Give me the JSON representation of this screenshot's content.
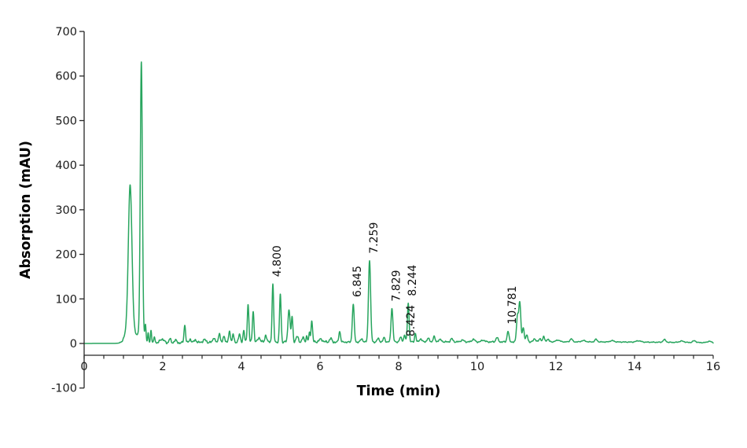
{
  "chart_data": {
    "type": "line",
    "title": "",
    "xlabel": "Time (min)",
    "ylabel": "Absorption (mAU)",
    "xlim": [
      0,
      16
    ],
    "ylim": [
      -100,
      700
    ],
    "x_major_ticks": [
      0,
      2,
      4,
      6,
      8,
      10,
      12,
      14,
      16
    ],
    "x_minor_tick_step": 0.5,
    "y_ticks": [
      700,
      600,
      500,
      400,
      300,
      200,
      100,
      0,
      -100
    ],
    "grid": "off",
    "legend": "none",
    "line_color": "#28a55e",
    "axis_color": "#262626",
    "text_color": "#1a1a1a",
    "labeled_peaks": [
      {
        "rt": 4.8,
        "label": "4.800"
      },
      {
        "rt": 6.845,
        "label": "6.845"
      },
      {
        "rt": 7.259,
        "label": "7.259"
      },
      {
        "rt": 7.829,
        "label": "7.829"
      },
      {
        "rt": 8.244,
        "label": "8.244"
      },
      {
        "rt": 8.424,
        "label": "8.424",
        "dx": -11,
        "dy": 13
      },
      {
        "rt": 10.781,
        "label": "10.781"
      }
    ],
    "peaks": [
      [
        1.17,
        310,
        0.045
      ],
      [
        1.17,
        45,
        0.1
      ],
      [
        1.455,
        600,
        0.026
      ],
      [
        1.455,
        30,
        0.07
      ],
      [
        1.56,
        33,
        0.014
      ],
      [
        1.63,
        20,
        0.013
      ],
      [
        1.7,
        28,
        0.016
      ],
      [
        1.79,
        12,
        0.02
      ],
      [
        1.98,
        9,
        0.05
      ],
      [
        2.18,
        9,
        0.025
      ],
      [
        2.32,
        6,
        0.03
      ],
      [
        2.56,
        40,
        0.02
      ],
      [
        2.7,
        8,
        0.025
      ],
      [
        2.83,
        6,
        0.03
      ],
      [
        3.06,
        6,
        0.04
      ],
      [
        3.3,
        11,
        0.025
      ],
      [
        3.44,
        22,
        0.02
      ],
      [
        3.56,
        14,
        0.022
      ],
      [
        3.7,
        24,
        0.022
      ],
      [
        3.79,
        18,
        0.018
      ],
      [
        3.95,
        16,
        0.025
      ],
      [
        4.06,
        27,
        0.018
      ],
      [
        4.17,
        85,
        0.02
      ],
      [
        4.3,
        70,
        0.02
      ],
      [
        4.45,
        10,
        0.03
      ],
      [
        4.62,
        16,
        0.022
      ],
      [
        4.8,
        130,
        0.02
      ],
      [
        4.99,
        107,
        0.02
      ],
      [
        5.21,
        74,
        0.026
      ],
      [
        5.29,
        56,
        0.02
      ],
      [
        5.42,
        12,
        0.03
      ],
      [
        5.57,
        10,
        0.025
      ],
      [
        5.66,
        13,
        0.018
      ],
      [
        5.73,
        20,
        0.016
      ],
      [
        5.79,
        48,
        0.02
      ],
      [
        6.02,
        6,
        0.05
      ],
      [
        6.27,
        8,
        0.03
      ],
      [
        6.5,
        24,
        0.022
      ],
      [
        6.845,
        85,
        0.024
      ],
      [
        7.06,
        7,
        0.03
      ],
      [
        7.259,
        184,
        0.027
      ],
      [
        7.48,
        8,
        0.028
      ],
      [
        7.63,
        10,
        0.024
      ],
      [
        7.829,
        76,
        0.024
      ],
      [
        8.05,
        10,
        0.028
      ],
      [
        8.15,
        15,
        0.022
      ],
      [
        8.244,
        88,
        0.021
      ],
      [
        8.424,
        20,
        0.018
      ],
      [
        8.56,
        7,
        0.03
      ],
      [
        8.75,
        8,
        0.03
      ],
      [
        8.9,
        12,
        0.024
      ],
      [
        9.05,
        5,
        0.04
      ],
      [
        9.35,
        7,
        0.03
      ],
      [
        9.62,
        4,
        0.04
      ],
      [
        9.9,
        6,
        0.035
      ],
      [
        10.15,
        4,
        0.04
      ],
      [
        10.5,
        10,
        0.028
      ],
      [
        10.781,
        24,
        0.024
      ],
      [
        11.02,
        55,
        0.024
      ],
      [
        11.08,
        88,
        0.026
      ],
      [
        11.17,
        32,
        0.024
      ],
      [
        11.26,
        15,
        0.024
      ],
      [
        11.46,
        7,
        0.03
      ],
      [
        11.6,
        7,
        0.03
      ],
      [
        11.69,
        12,
        0.02
      ],
      [
        11.79,
        6,
        0.03
      ],
      [
        12.05,
        4,
        0.05
      ],
      [
        12.39,
        7,
        0.03
      ],
      [
        12.7,
        3,
        0.05
      ],
      [
        13.02,
        6,
        0.03
      ],
      [
        13.43,
        3,
        0.05
      ],
      [
        14.1,
        3,
        0.06
      ],
      [
        14.76,
        6,
        0.035
      ],
      [
        15.2,
        3,
        0.06
      ],
      [
        15.52,
        4,
        0.04
      ],
      [
        15.9,
        3,
        0.05
      ]
    ],
    "baseline_humps": [
      [
        4.3,
        3.0,
        1.6
      ],
      [
        8.0,
        2.0,
        1.8
      ],
      [
        12.5,
        3.5,
        3.0
      ]
    ]
  }
}
